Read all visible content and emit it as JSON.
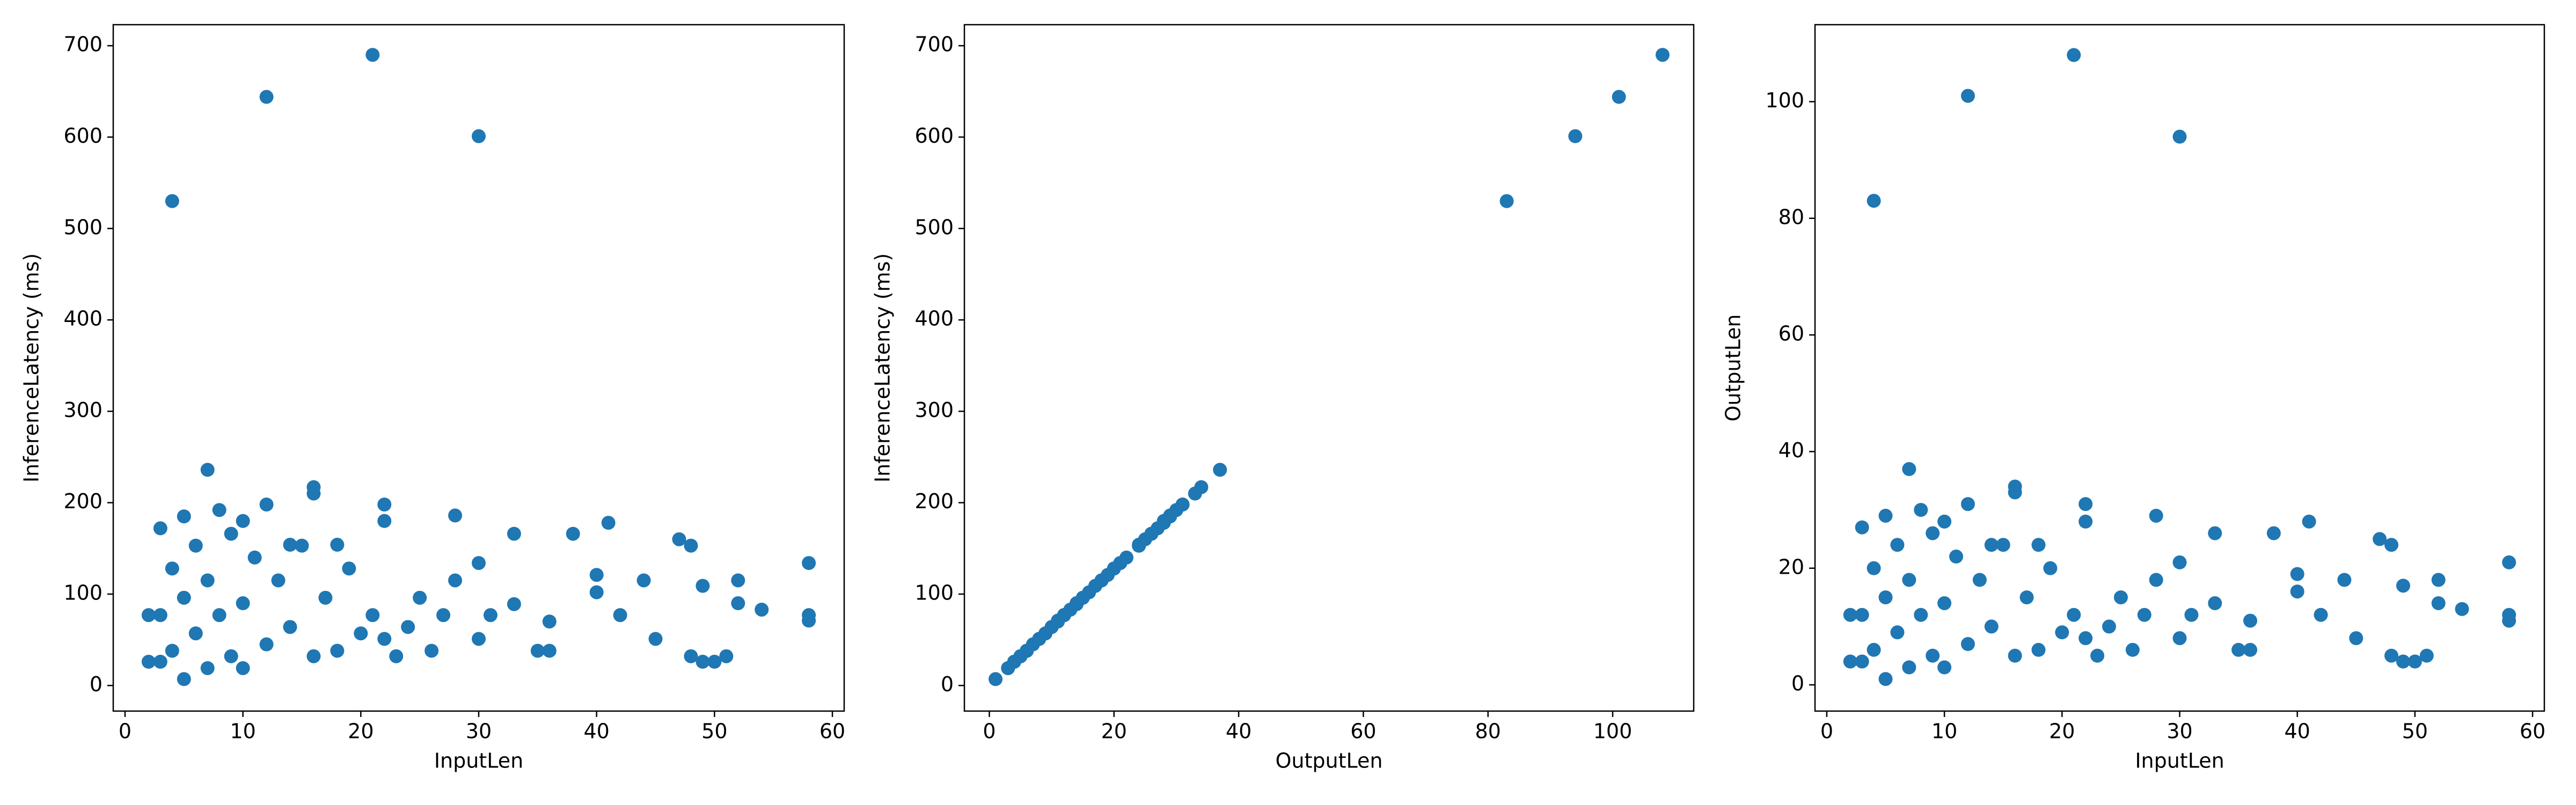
{
  "chart_data": [
    {
      "type": "scatter",
      "x_label": "InputLen",
      "y_label": "InferenceLatency (ms)",
      "color": "#1f77b4",
      "x": [
        4,
        12,
        21,
        30,
        7,
        16,
        16,
        3,
        12,
        22,
        22,
        28,
        41,
        47,
        48,
        58,
        58,
        58,
        54,
        52,
        52,
        51,
        50,
        49,
        48,
        49,
        44,
        45,
        38,
        40,
        40,
        36,
        36,
        33,
        33,
        31,
        30,
        30,
        28,
        27,
        26,
        25,
        24,
        23,
        22,
        21,
        20,
        19,
        18,
        17,
        16,
        15,
        14,
        13,
        12,
        11,
        10,
        10,
        9,
        9,
        8,
        7,
        7,
        6,
        6,
        5,
        5,
        4,
        4,
        3,
        3,
        2,
        2,
        5,
        8,
        10,
        14,
        18,
        35,
        42
      ],
      "values": [
        530,
        644,
        690,
        601,
        236,
        217,
        210,
        172,
        198,
        198,
        180,
        186,
        178,
        160,
        153,
        134,
        77,
        71,
        83,
        115,
        90,
        32,
        26,
        26,
        32,
        109,
        115,
        51,
        166,
        121,
        102,
        38,
        70,
        166,
        89,
        77,
        51,
        134,
        115,
        77,
        38,
        96,
        64,
        32,
        51,
        77,
        57,
        128,
        38,
        96,
        32,
        153,
        64,
        115,
        45,
        140,
        19,
        90,
        166,
        32,
        77,
        115,
        19,
        57,
        153,
        7,
        96,
        38,
        128,
        77,
        26,
        26,
        77,
        185,
        192,
        180,
        154,
        154,
        38,
        77
      ],
      "xlim": [
        -1,
        61
      ],
      "ylim": [
        -28,
        723
      ],
      "xticks": [
        0,
        10,
        20,
        30,
        40,
        50,
        60
      ],
      "yticks": [
        0,
        100,
        200,
        300,
        400,
        500,
        600,
        700
      ]
    },
    {
      "type": "scatter",
      "x_label": "OutputLen",
      "y_label": "InferenceLatency (ms)",
      "color": "#1f77b4",
      "x": [
        83,
        101,
        108,
        94,
        37,
        34,
        33,
        27,
        31,
        31,
        28,
        29,
        28,
        25,
        24,
        21,
        12,
        11,
        13,
        18,
        14,
        5,
        4,
        4,
        5,
        17,
        18,
        8,
        26,
        19,
        16,
        6,
        11,
        26,
        14,
        12,
        8,
        21,
        18,
        12,
        6,
        15,
        10,
        5,
        8,
        12,
        9,
        20,
        6,
        15,
        5,
        24,
        10,
        18,
        7,
        22,
        3,
        14,
        26,
        5,
        12,
        18,
        3,
        9,
        24,
        1,
        15,
        6,
        20,
        12,
        4,
        4,
        12,
        29,
        30,
        28,
        24,
        24,
        6,
        12
      ],
      "values": [
        530,
        644,
        690,
        601,
        236,
        217,
        210,
        172,
        198,
        198,
        180,
        186,
        178,
        160,
        153,
        134,
        77,
        71,
        83,
        115,
        90,
        32,
        26,
        26,
        32,
        109,
        115,
        51,
        166,
        121,
        102,
        38,
        70,
        166,
        89,
        77,
        51,
        134,
        115,
        77,
        38,
        96,
        64,
        32,
        51,
        77,
        57,
        128,
        38,
        96,
        32,
        153,
        64,
        115,
        45,
        140,
        19,
        90,
        166,
        32,
        77,
        115,
        19,
        57,
        153,
        7,
        96,
        38,
        128,
        77,
        26,
        26,
        77,
        185,
        192,
        180,
        154,
        154,
        38,
        77
      ],
      "xlim": [
        -4,
        113
      ],
      "ylim": [
        -28,
        723
      ],
      "xticks": [
        0,
        20,
        40,
        60,
        80,
        100
      ],
      "yticks": [
        0,
        100,
        200,
        300,
        400,
        500,
        600,
        700
      ]
    },
    {
      "type": "scatter",
      "x_label": "InputLen",
      "y_label": "OutputLen",
      "color": "#1f77b4",
      "x": [
        4,
        12,
        21,
        30,
        7,
        16,
        16,
        3,
        12,
        22,
        22,
        28,
        41,
        47,
        48,
        58,
        58,
        58,
        54,
        52,
        52,
        51,
        50,
        49,
        48,
        49,
        44,
        45,
        38,
        40,
        40,
        36,
        36,
        33,
        33,
        31,
        30,
        30,
        28,
        27,
        26,
        25,
        24,
        23,
        22,
        21,
        20,
        19,
        18,
        17,
        16,
        15,
        14,
        13,
        12,
        11,
        10,
        10,
        9,
        9,
        8,
        7,
        7,
        6,
        6,
        5,
        5,
        4,
        4,
        3,
        3,
        2,
        2,
        5,
        8,
        10,
        14,
        18,
        35,
        42
      ],
      "values": [
        83,
        101,
        108,
        94,
        37,
        34,
        33,
        27,
        31,
        31,
        28,
        29,
        28,
        25,
        24,
        21,
        12,
        11,
        13,
        18,
        14,
        5,
        4,
        4,
        5,
        17,
        18,
        8,
        26,
        19,
        16,
        6,
        11,
        26,
        14,
        12,
        8,
        21,
        18,
        12,
        6,
        15,
        10,
        5,
        8,
        12,
        9,
        20,
        6,
        15,
        5,
        24,
        10,
        18,
        7,
        22,
        3,
        14,
        26,
        5,
        12,
        18,
        3,
        9,
        24,
        1,
        15,
        6,
        20,
        12,
        4,
        4,
        12,
        29,
        30,
        28,
        24,
        24,
        6,
        12
      ],
      "xlim": [
        -1,
        61
      ],
      "ylim": [
        -4.5,
        113.2
      ],
      "xticks": [
        0,
        10,
        20,
        30,
        40,
        50,
        60
      ],
      "yticks": [
        0,
        20,
        40,
        60,
        80,
        100
      ]
    }
  ]
}
